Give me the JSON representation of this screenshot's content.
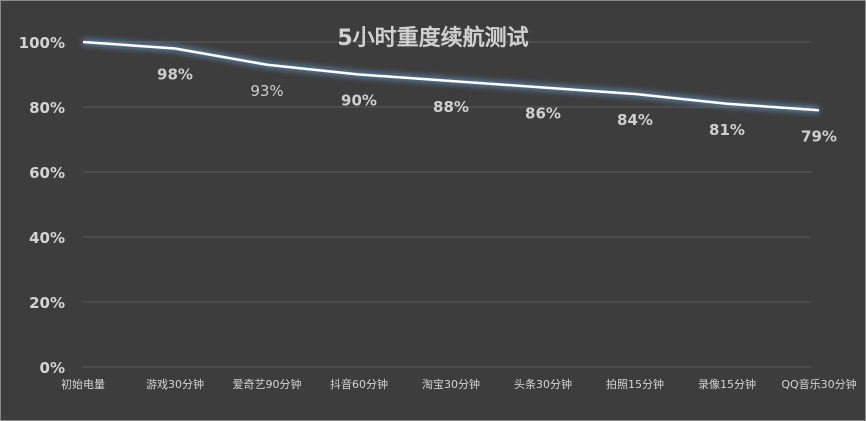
{
  "chart_data": {
    "type": "line",
    "title": "5小时重度续航测试",
    "xlabel": "",
    "ylabel": "",
    "ylim": [
      0,
      100
    ],
    "y_ticks": [
      "0%",
      "20%",
      "40%",
      "60%",
      "80%",
      "100%"
    ],
    "y_tick_values": [
      0,
      20,
      40,
      60,
      80,
      100
    ],
    "categories": [
      "初始电量",
      "游戏30分钟",
      "爱奇艺90分钟",
      "抖音60分钟",
      "淘宝30分钟",
      "头条30分钟",
      "拍照15分钟",
      "录像15分钟",
      "QQ音乐30分钟"
    ],
    "series": [
      {
        "values": [
          100,
          98,
          93,
          90,
          88,
          86,
          84,
          81,
          79
        ],
        "labels": [
          "",
          "98%",
          "93%",
          "90%",
          "88%",
          "86%",
          "84%",
          "81%",
          "79%"
        ]
      }
    ],
    "grid": true,
    "colors": {
      "background": "#3d3d3d",
      "line": "#ffffff",
      "glow": "#6fa8dc",
      "grid": "#5a5a5a",
      "text": "#d4d4d4"
    }
  }
}
